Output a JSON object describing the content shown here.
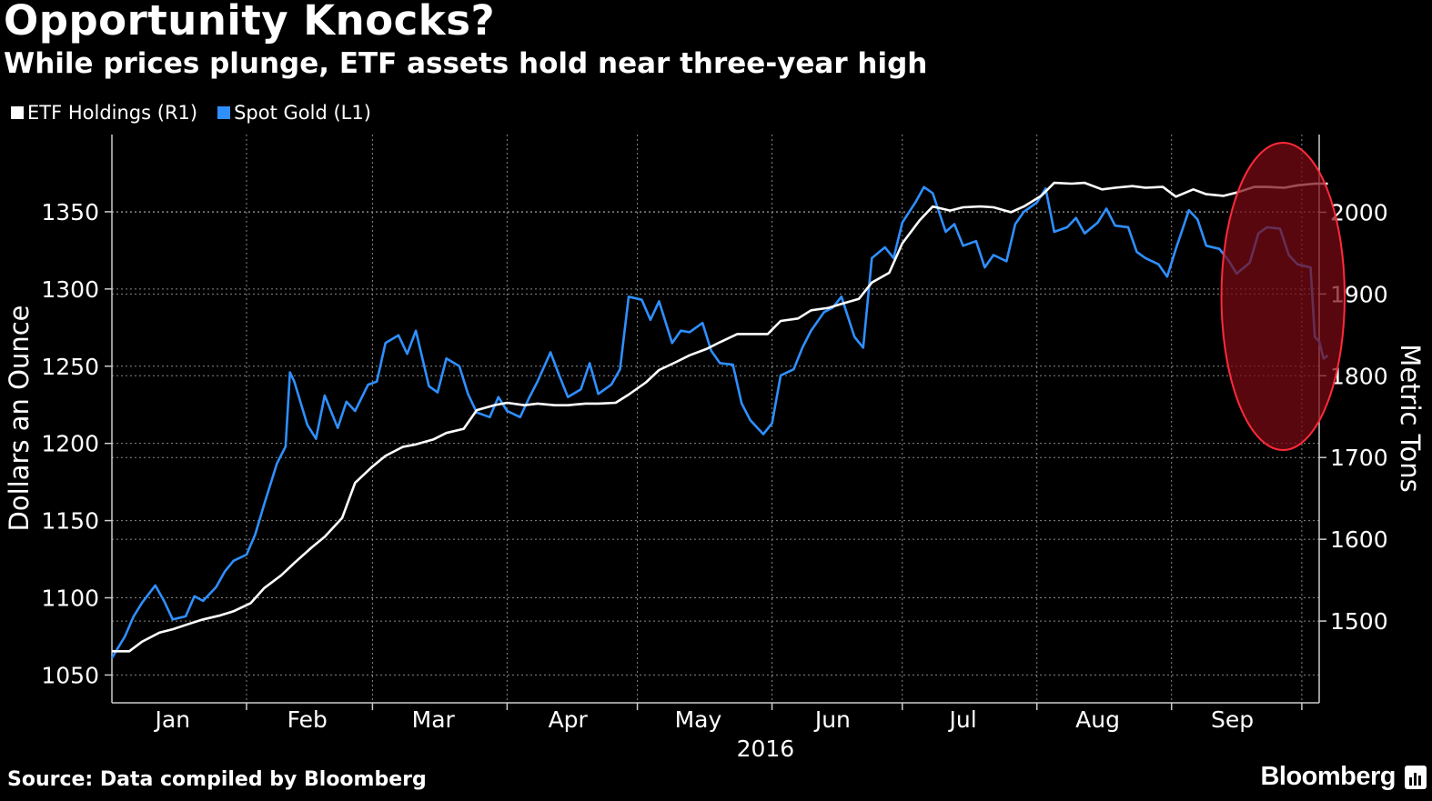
{
  "header": {
    "title": "Opportunity Knocks?",
    "subtitle": "While prices plunge, ETF assets hold near three-year high"
  },
  "legend": [
    {
      "label": "ETF Holdings (R1)",
      "color": "#ffffff"
    },
    {
      "label": "Spot Gold (L1)",
      "color": "#2f8fff"
    }
  ],
  "footer": {
    "source": "Source: Data compiled by Bloomberg",
    "brand": "Bloomberg"
  },
  "chart_data": {
    "type": "line",
    "xlabel": "2016",
    "ylabel_left": "Dollars an Ounce",
    "ylabel_right": "Metric Tons",
    "x_range": [
      "2016-01-01",
      "2016-10-05"
    ],
    "x_ticks": [
      {
        "label": "Jan",
        "date": "2016-01-15"
      },
      {
        "label": "Feb",
        "date": "2016-02-15"
      },
      {
        "label": "Mar",
        "date": "2016-03-15"
      },
      {
        "label": "Apr",
        "date": "2016-04-15"
      },
      {
        "label": "May",
        "date": "2016-05-15"
      },
      {
        "label": "Jun",
        "date": "2016-06-15"
      },
      {
        "label": "Jul",
        "date": "2016-07-15"
      },
      {
        "label": "Aug",
        "date": "2016-08-15"
      },
      {
        "label": "Sep",
        "date": "2016-09-15"
      }
    ],
    "y_left": {
      "range": [
        1032,
        1400
      ],
      "ticks": [
        1050,
        1100,
        1150,
        1200,
        1250,
        1300,
        1350
      ]
    },
    "y_right": {
      "range": [
        1400,
        2095
      ],
      "ticks": [
        1500,
        1600,
        1700,
        1800,
        1900,
        2000
      ]
    },
    "grid": true,
    "highlight": {
      "shape": "ellipse",
      "from": "2016-09-15",
      "to": "2016-10-05",
      "color": "#7a0a14",
      "stroke": "#ff2a3a"
    },
    "series": [
      {
        "name": "Spot Gold (L1)",
        "axis": "left",
        "color": "#2f8fff",
        "points": [
          [
            "2016-01-01",
            1061
          ],
          [
            "2016-01-04",
            1075
          ],
          [
            "2016-01-06",
            1088
          ],
          [
            "2016-01-08",
            1097
          ],
          [
            "2016-01-11",
            1108
          ],
          [
            "2016-01-13",
            1098
          ],
          [
            "2016-01-15",
            1086
          ],
          [
            "2016-01-18",
            1088
          ],
          [
            "2016-01-20",
            1101
          ],
          [
            "2016-01-22",
            1098
          ],
          [
            "2016-01-25",
            1107
          ],
          [
            "2016-01-27",
            1117
          ],
          [
            "2016-01-29",
            1124
          ],
          [
            "2016-02-01",
            1128
          ],
          [
            "2016-02-03",
            1141
          ],
          [
            "2016-02-05",
            1160
          ],
          [
            "2016-02-08",
            1187
          ],
          [
            "2016-02-10",
            1198
          ],
          [
            "2016-02-11",
            1246
          ],
          [
            "2016-02-12",
            1240
          ],
          [
            "2016-02-15",
            1212
          ],
          [
            "2016-02-17",
            1203
          ],
          [
            "2016-02-19",
            1231
          ],
          [
            "2016-02-22",
            1210
          ],
          [
            "2016-02-24",
            1227
          ],
          [
            "2016-02-26",
            1221
          ],
          [
            "2016-02-29",
            1238
          ],
          [
            "2016-03-02",
            1240
          ],
          [
            "2016-03-04",
            1265
          ],
          [
            "2016-03-07",
            1270
          ],
          [
            "2016-03-09",
            1258
          ],
          [
            "2016-03-11",
            1273
          ],
          [
            "2016-03-14",
            1237
          ],
          [
            "2016-03-16",
            1233
          ],
          [
            "2016-03-18",
            1255
          ],
          [
            "2016-03-21",
            1250
          ],
          [
            "2016-03-23",
            1232
          ],
          [
            "2016-03-25",
            1220
          ],
          [
            "2016-03-28",
            1217
          ],
          [
            "2016-03-30",
            1230
          ],
          [
            "2016-04-01",
            1221
          ],
          [
            "2016-04-04",
            1217
          ],
          [
            "2016-04-06",
            1229
          ],
          [
            "2016-04-08",
            1240
          ],
          [
            "2016-04-11",
            1259
          ],
          [
            "2016-04-13",
            1244
          ],
          [
            "2016-04-15",
            1230
          ],
          [
            "2016-04-18",
            1235
          ],
          [
            "2016-04-20",
            1252
          ],
          [
            "2016-04-22",
            1232
          ],
          [
            "2016-04-25",
            1238
          ],
          [
            "2016-04-27",
            1248
          ],
          [
            "2016-04-29",
            1295
          ],
          [
            "2016-05-02",
            1293
          ],
          [
            "2016-05-04",
            1280
          ],
          [
            "2016-05-06",
            1292
          ],
          [
            "2016-05-09",
            1265
          ],
          [
            "2016-05-11",
            1273
          ],
          [
            "2016-05-13",
            1272
          ],
          [
            "2016-05-16",
            1278
          ],
          [
            "2016-05-18",
            1260
          ],
          [
            "2016-05-20",
            1252
          ],
          [
            "2016-05-23",
            1251
          ],
          [
            "2016-05-25",
            1226
          ],
          [
            "2016-05-27",
            1215
          ],
          [
            "2016-05-30",
            1206
          ],
          [
            "2016-06-01",
            1213
          ],
          [
            "2016-06-03",
            1244
          ],
          [
            "2016-06-06",
            1248
          ],
          [
            "2016-06-08",
            1262
          ],
          [
            "2016-06-10",
            1273
          ],
          [
            "2016-06-13",
            1285
          ],
          [
            "2016-06-15",
            1288
          ],
          [
            "2016-06-17",
            1295
          ],
          [
            "2016-06-20",
            1269
          ],
          [
            "2016-06-22",
            1262
          ],
          [
            "2016-06-24",
            1320
          ],
          [
            "2016-06-27",
            1327
          ],
          [
            "2016-06-29",
            1320
          ],
          [
            "2016-07-01",
            1343
          ],
          [
            "2016-07-04",
            1356
          ],
          [
            "2016-07-06",
            1366
          ],
          [
            "2016-07-08",
            1362
          ],
          [
            "2016-07-11",
            1337
          ],
          [
            "2016-07-13",
            1342
          ],
          [
            "2016-07-15",
            1328
          ],
          [
            "2016-07-18",
            1331
          ],
          [
            "2016-07-20",
            1314
          ],
          [
            "2016-07-22",
            1322
          ],
          [
            "2016-07-25",
            1318
          ],
          [
            "2016-07-27",
            1342
          ],
          [
            "2016-07-29",
            1350
          ],
          [
            "2016-08-01",
            1356
          ],
          [
            "2016-08-03",
            1365
          ],
          [
            "2016-08-05",
            1337
          ],
          [
            "2016-08-08",
            1340
          ],
          [
            "2016-08-10",
            1346
          ],
          [
            "2016-08-12",
            1336
          ],
          [
            "2016-08-15",
            1343
          ],
          [
            "2016-08-17",
            1352
          ],
          [
            "2016-08-19",
            1341
          ],
          [
            "2016-08-22",
            1340
          ],
          [
            "2016-08-24",
            1324
          ],
          [
            "2016-08-26",
            1320
          ],
          [
            "2016-08-29",
            1316
          ],
          [
            "2016-08-31",
            1308
          ],
          [
            "2016-09-02",
            1326
          ],
          [
            "2016-09-05",
            1351
          ],
          [
            "2016-09-07",
            1345
          ],
          [
            "2016-09-09",
            1328
          ],
          [
            "2016-09-12",
            1326
          ],
          [
            "2016-09-14",
            1319
          ],
          [
            "2016-09-16",
            1310
          ],
          [
            "2016-09-19",
            1317
          ],
          [
            "2016-09-21",
            1336
          ],
          [
            "2016-09-23",
            1340
          ],
          [
            "2016-09-26",
            1339
          ],
          [
            "2016-09-28",
            1322
          ],
          [
            "2016-09-30",
            1316
          ],
          [
            "2016-10-03",
            1314
          ],
          [
            "2016-10-04",
            1269
          ],
          [
            "2016-10-05",
            1266
          ],
          [
            "2016-10-06",
            1255
          ],
          [
            "2016-10-07",
            1257
          ]
        ]
      },
      {
        "name": "ETF Holdings (R1)",
        "axis": "right",
        "color": "#ffffff",
        "points": [
          [
            "2016-01-01",
            1463
          ],
          [
            "2016-01-05",
            1463
          ],
          [
            "2016-01-08",
            1475
          ],
          [
            "2016-01-12",
            1486
          ],
          [
            "2016-01-15",
            1490
          ],
          [
            "2016-01-19",
            1497
          ],
          [
            "2016-01-22",
            1502
          ],
          [
            "2016-01-26",
            1507
          ],
          [
            "2016-01-29",
            1512
          ],
          [
            "2016-02-02",
            1522
          ],
          [
            "2016-02-05",
            1540
          ],
          [
            "2016-02-09",
            1556
          ],
          [
            "2016-02-12",
            1571
          ],
          [
            "2016-02-16",
            1590
          ],
          [
            "2016-02-19",
            1603
          ],
          [
            "2016-02-23",
            1626
          ],
          [
            "2016-02-26",
            1669
          ],
          [
            "2016-03-01",
            1689
          ],
          [
            "2016-03-04",
            1702
          ],
          [
            "2016-03-08",
            1713
          ],
          [
            "2016-03-11",
            1716
          ],
          [
            "2016-03-15",
            1722
          ],
          [
            "2016-03-18",
            1730
          ],
          [
            "2016-03-22",
            1735
          ],
          [
            "2016-03-25",
            1758
          ],
          [
            "2016-03-29",
            1764
          ],
          [
            "2016-04-01",
            1767
          ],
          [
            "2016-04-05",
            1764
          ],
          [
            "2016-04-08",
            1766
          ],
          [
            "2016-04-12",
            1764
          ],
          [
            "2016-04-15",
            1764
          ],
          [
            "2016-04-19",
            1766
          ],
          [
            "2016-04-22",
            1766
          ],
          [
            "2016-04-26",
            1767
          ],
          [
            "2016-04-29",
            1777
          ],
          [
            "2016-05-03",
            1792
          ],
          [
            "2016-05-06",
            1807
          ],
          [
            "2016-05-10",
            1817
          ],
          [
            "2016-05-13",
            1825
          ],
          [
            "2016-05-17",
            1833
          ],
          [
            "2016-05-20",
            1841
          ],
          [
            "2016-05-24",
            1851
          ],
          [
            "2016-05-27",
            1851
          ],
          [
            "2016-05-31",
            1851
          ],
          [
            "2016-06-03",
            1867
          ],
          [
            "2016-06-07",
            1870
          ],
          [
            "2016-06-10",
            1880
          ],
          [
            "2016-06-14",
            1883
          ],
          [
            "2016-06-17",
            1888
          ],
          [
            "2016-06-21",
            1894
          ],
          [
            "2016-06-24",
            1914
          ],
          [
            "2016-06-28",
            1926
          ],
          [
            "2016-07-01",
            1962
          ],
          [
            "2016-07-05",
            1990
          ],
          [
            "2016-07-08",
            2007
          ],
          [
            "2016-07-12",
            2002
          ],
          [
            "2016-07-15",
            2006
          ],
          [
            "2016-07-19",
            2007
          ],
          [
            "2016-07-22",
            2006
          ],
          [
            "2016-07-26",
            2000
          ],
          [
            "2016-07-29",
            2007
          ],
          [
            "2016-08-02",
            2020
          ],
          [
            "2016-08-05",
            2036
          ],
          [
            "2016-08-09",
            2035
          ],
          [
            "2016-08-12",
            2036
          ],
          [
            "2016-08-16",
            2028
          ],
          [
            "2016-08-19",
            2030
          ],
          [
            "2016-08-23",
            2032
          ],
          [
            "2016-08-26",
            2030
          ],
          [
            "2016-08-30",
            2031
          ],
          [
            "2016-09-02",
            2019
          ],
          [
            "2016-09-06",
            2028
          ],
          [
            "2016-09-09",
            2022
          ],
          [
            "2016-09-13",
            2020
          ],
          [
            "2016-09-16",
            2024
          ],
          [
            "2016-09-20",
            2031
          ],
          [
            "2016-09-23",
            2031
          ],
          [
            "2016-09-27",
            2030
          ],
          [
            "2016-09-30",
            2033
          ],
          [
            "2016-10-04",
            2035
          ],
          [
            "2016-10-07",
            2035
          ]
        ]
      }
    ]
  }
}
